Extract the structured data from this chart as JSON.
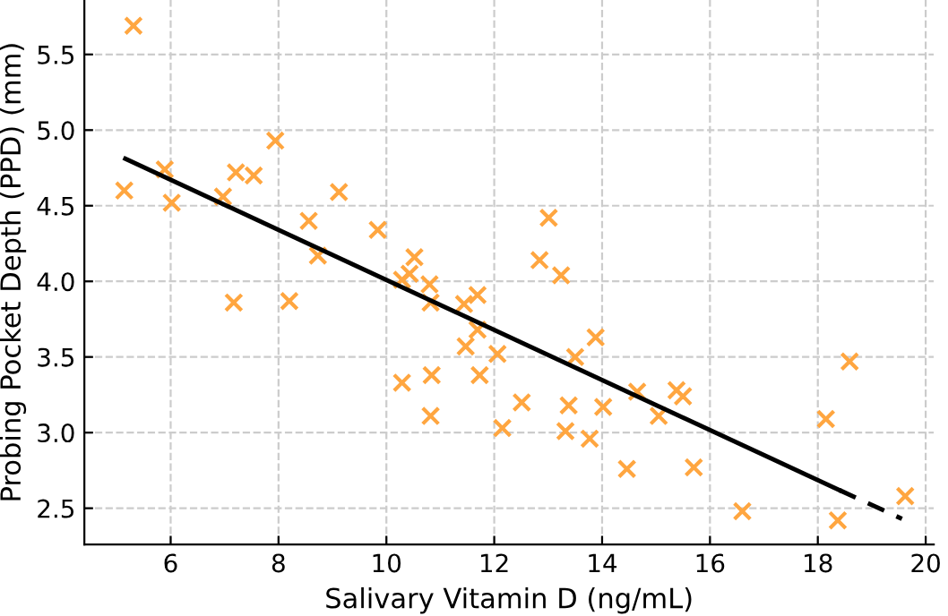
{
  "chart_data": {
    "type": "scatter",
    "xlabel": "Salivary Vitamin D (ng/mL)",
    "ylabel": "Probing Pocket Depth (PPD) (mm)",
    "xlim": [
      4.4,
      20.15
    ],
    "ylim": [
      2.26,
      5.86
    ],
    "xticks": [
      6,
      8,
      10,
      12,
      14,
      16,
      18,
      20
    ],
    "yticks": [
      2.5,
      {
        "value": 3,
        "label": "3.0"
      },
      3.5,
      {
        "value": 4,
        "label": "4.0"
      },
      4.5,
      {
        "value": 5,
        "label": "5.0"
      },
      5.5
    ],
    "grid": true,
    "series": [
      {
        "color": "#ffa640",
        "marker": "cross",
        "x": [
          5.31,
          5.14,
          5.89,
          6.02,
          6.97,
          7.21,
          7.54,
          7.94,
          7.17,
          8.2,
          8.56,
          8.73,
          9.12,
          9.84,
          10.29,
          10.43,
          10.52,
          10.8,
          10.82,
          10.29,
          10.84,
          10.82,
          11.44,
          11.69,
          11.69,
          11.47,
          11.73,
          12.06,
          12.15,
          12.51,
          13.01,
          12.84,
          13.24,
          13.88,
          13.5,
          13.38,
          13.32,
          13.77,
          14.02,
          14.46,
          14.65,
          15.05,
          15.38,
          15.5,
          15.7,
          16.6,
          18.15,
          18.59,
          18.37,
          19.62
        ],
        "values": [
          5.69,
          4.6,
          4.74,
          4.52,
          4.56,
          4.72,
          4.7,
          4.93,
          3.86,
          3.87,
          4.4,
          4.17,
          4.59,
          4.34,
          4.01,
          4.05,
          4.16,
          3.98,
          3.86,
          3.33,
          3.38,
          3.11,
          3.85,
          3.91,
          3.68,
          3.57,
          3.38,
          3.52,
          3.03,
          3.2,
          4.42,
          4.14,
          4.04,
          3.63,
          3.5,
          3.18,
          3.01,
          2.96,
          3.17,
          2.76,
          3.27,
          3.11,
          3.28,
          3.24,
          2.77,
          2.48,
          3.09,
          3.47,
          2.42,
          2.58
        ]
      },
      {
        "type": "line",
        "color": "#000000",
        "line_style": "solid",
        "marker": "none",
        "x": [
          5.16,
          18.4
        ],
        "values": [
          4.81,
          2.62
        ]
      },
      {
        "type": "line",
        "color": "#000000",
        "line_style": "dashed",
        "marker": "none",
        "x": [
          18.4,
          19.56
        ],
        "values": [
          2.62,
          2.43
        ]
      }
    ]
  }
}
